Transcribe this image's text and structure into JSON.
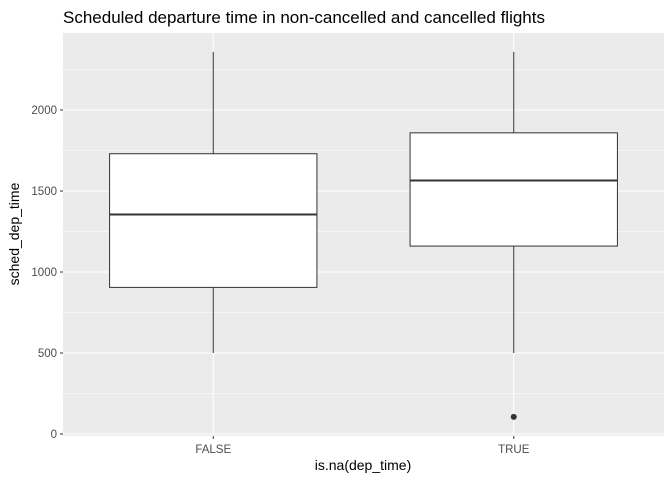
{
  "chart_data": {
    "type": "boxplot",
    "title": "Scheduled departure time in non-cancelled and cancelled flights",
    "xlabel": "is.na(dep_time)",
    "ylabel": "sched_dep_time",
    "categories": [
      "FALSE",
      "TRUE"
    ],
    "ylim": [
      0,
      2400
    ],
    "yticks": [
      0,
      500,
      1000,
      1500,
      2000
    ],
    "grid": true,
    "boxes": [
      {
        "category": "FALSE",
        "min": 500,
        "q1": 905,
        "median": 1355,
        "q3": 1730,
        "max": 2359,
        "outliers": []
      },
      {
        "category": "TRUE",
        "min": 500,
        "q1": 1160,
        "median": 1565,
        "q3": 1859,
        "max": 2359,
        "outliers": [
          106
        ]
      }
    ],
    "colors": {
      "panel_background": "#ebebeb",
      "grid_major": "#ffffff",
      "box_fill": "#ffffff",
      "box_stroke": "#333333"
    }
  }
}
